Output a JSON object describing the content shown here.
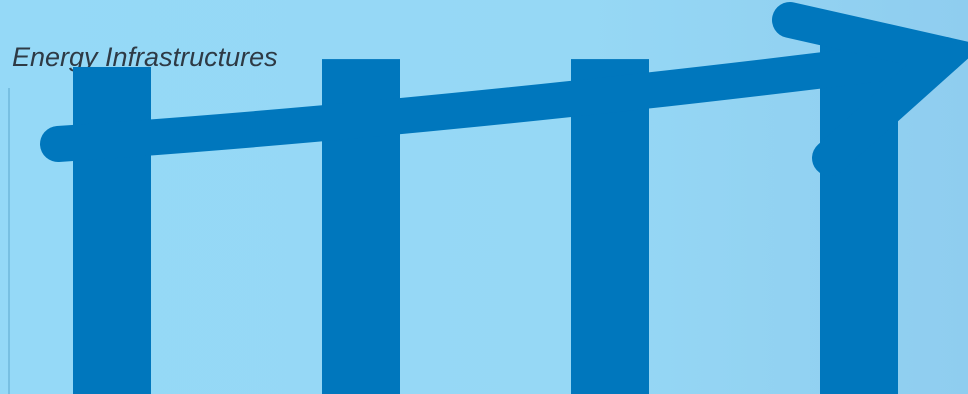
{
  "chart_data": {
    "type": "bar",
    "title": "Energy Infrastructures",
    "categories": [
      "",
      "",
      "",
      ""
    ],
    "values": [
      83,
      85,
      85,
      90
    ],
    "ylim": [
      0,
      100
    ],
    "grid": false,
    "bar_color": "#0077bd",
    "axis_color": "#6fb8dc",
    "arrow_color": "#0077bd",
    "annotations": [
      "upward trend arrow"
    ]
  }
}
